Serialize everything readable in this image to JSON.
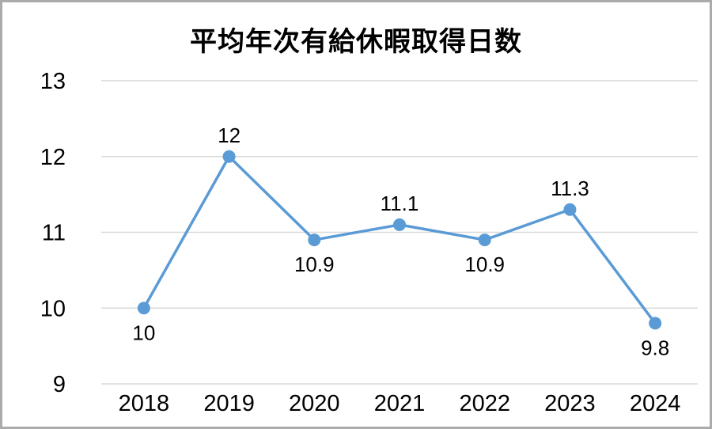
{
  "chart_data": {
    "type": "line",
    "title": "平均年次有給休暇取得日数",
    "categories": [
      "2018",
      "2019",
      "2020",
      "2021",
      "2022",
      "2023",
      "2024"
    ],
    "series": [
      {
        "name": "平均年次有給休暇取得日数",
        "values": [
          10,
          12,
          10.9,
          11.1,
          10.9,
          11.3,
          9.8
        ],
        "data_labels": [
          "10",
          "12",
          "10.9",
          "11.1",
          "10.9",
          "11.3",
          "9.8"
        ],
        "label_positions": [
          "below",
          "above",
          "below",
          "above",
          "below",
          "above",
          "below"
        ]
      }
    ],
    "xlabel": "",
    "ylabel": "",
    "ylim": [
      9,
      13
    ],
    "yticks": [
      9,
      10,
      11,
      12,
      13
    ],
    "ytick_labels": [
      "9",
      "10",
      "11",
      "12",
      "13"
    ],
    "grid": true,
    "legend": "none",
    "marker": "circle",
    "colors": {
      "series": "#5B9BD5",
      "gridline": "#D9D9D9",
      "text": "#000000",
      "frame_border": "#ABABAB",
      "background": "#FFFFFF"
    }
  }
}
